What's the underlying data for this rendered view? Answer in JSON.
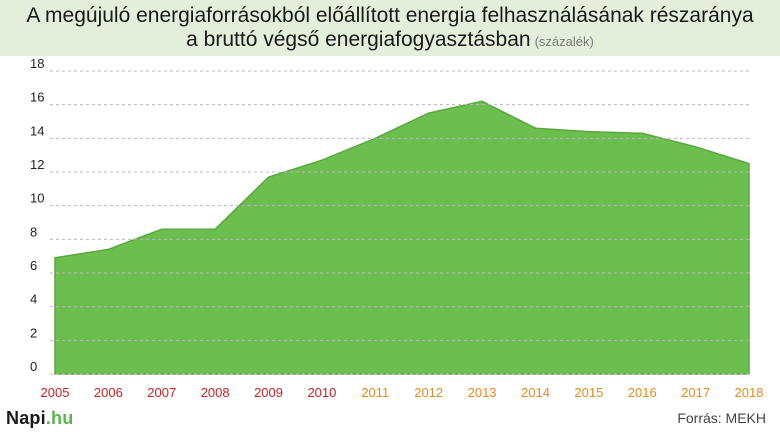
{
  "header": {
    "title_line1": "A megújuló energiaforrásokból előállított energia felhasználásának részaránya",
    "title_line2": "a bruttó végső energiafogyasztásban",
    "unit": "(százalék)"
  },
  "footer": {
    "logo_main": "Napi",
    "logo_tld": ".hu",
    "source": "Forrás: MEKH"
  },
  "colors": {
    "area_fill": "#6cbf4e",
    "area_stroke": "#5aa83f",
    "header_bg": "#e3efdb",
    "year_red": "#cc1f1f",
    "year_orange": "#e8891c",
    "grid": "#b8b8b8"
  },
  "chart_data": {
    "type": "area",
    "categories": [
      "2005",
      "2006",
      "2007",
      "2008",
      "2009",
      "2010",
      "2011",
      "2012",
      "2013",
      "2014",
      "2015",
      "2016",
      "2017",
      "2018"
    ],
    "values": [
      6.9,
      7.4,
      8.6,
      8.6,
      11.7,
      12.7,
      14.0,
      15.5,
      16.2,
      14.6,
      14.4,
      14.3,
      13.5,
      12.5
    ],
    "category_color_groups": [
      "red",
      "red",
      "red",
      "red",
      "red",
      "red",
      "orange",
      "orange",
      "orange",
      "orange",
      "orange",
      "orange",
      "orange",
      "orange"
    ],
    "ylim": [
      0,
      18
    ],
    "yticks": [
      0,
      2,
      4,
      6,
      8,
      10,
      12,
      14,
      16,
      18
    ],
    "grid": true,
    "title": "A megújuló energiaforrásokból előállított energia felhasználásának részaránya a bruttó végső energiafogyasztásban",
    "ylabel": "(százalék)"
  }
}
